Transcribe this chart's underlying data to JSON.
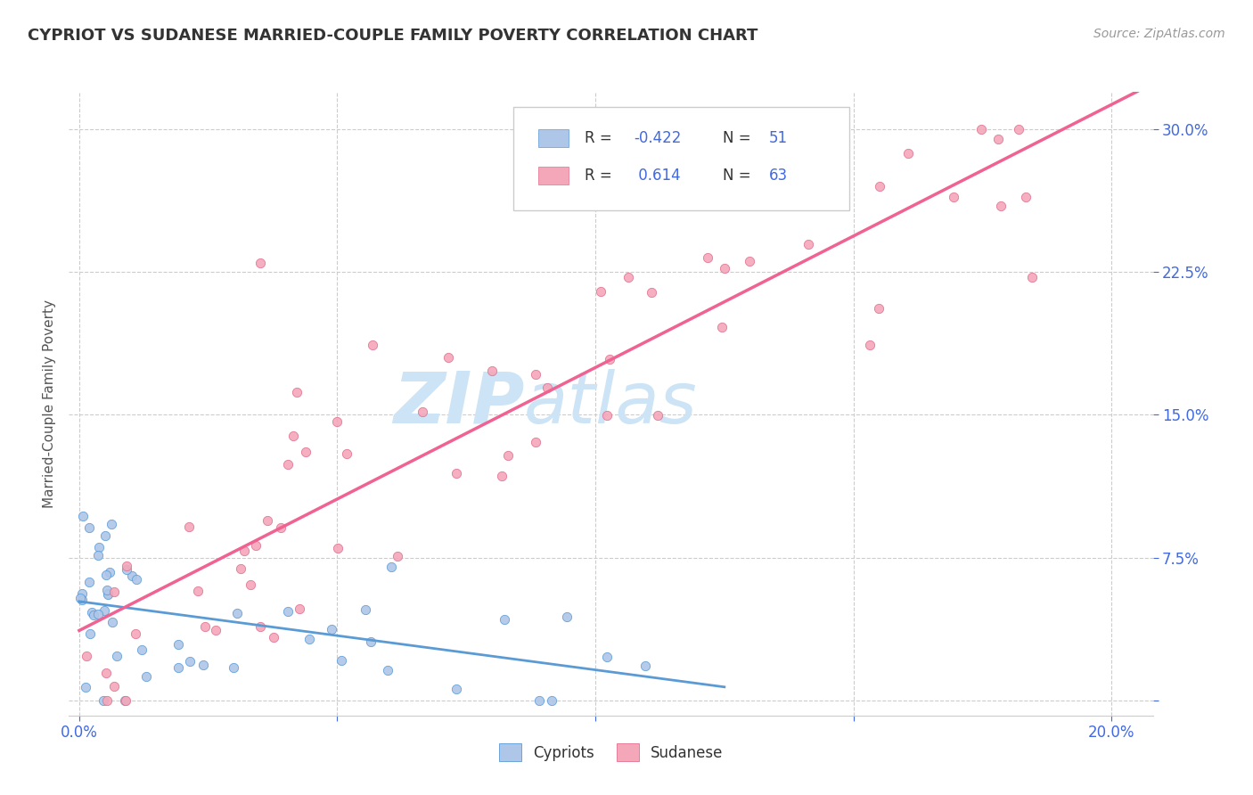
{
  "title": "CYPRIOT VS SUDANESE MARRIED-COUPLE FAMILY POVERTY CORRELATION CHART",
  "source": "Source: ZipAtlas.com",
  "ylabel": "Married-Couple Family Poverty",
  "xmin": -0.002,
  "xmax": 0.208,
  "ymin": -0.008,
  "ymax": 0.32,
  "xticks": [
    0.0,
    0.05,
    0.1,
    0.15,
    0.2
  ],
  "xticklabels": [
    "0.0%",
    "",
    "",
    "",
    "20.0%"
  ],
  "yticks": [
    0.0,
    0.075,
    0.15,
    0.225,
    0.3
  ],
  "yticklabels": [
    "",
    "7.5%",
    "15.0%",
    "22.5%",
    "30.0%"
  ],
  "cypriot_color": "#aec6e8",
  "sudanese_color": "#f4a7b9",
  "cypriot_R": -0.422,
  "cypriot_N": 51,
  "sudanese_R": 0.614,
  "sudanese_N": 63,
  "cypriot_line_color": "#5b9bd5",
  "sudanese_line_color": "#f06292",
  "watermark_zip_color": "#cce4f5",
  "watermark_atlas_color": "#cce4f5",
  "legend_R_color": "#4169e1",
  "legend_N_color": "#333333",
  "background_color": "#ffffff",
  "grid_color": "#cccccc",
  "tick_color": "#4169e1",
  "title_color": "#333333",
  "source_color": "#999999",
  "ylabel_color": "#555555",
  "cypriot_edge_color": "#5b9bd5",
  "sudanese_edge_color": "#e07090"
}
